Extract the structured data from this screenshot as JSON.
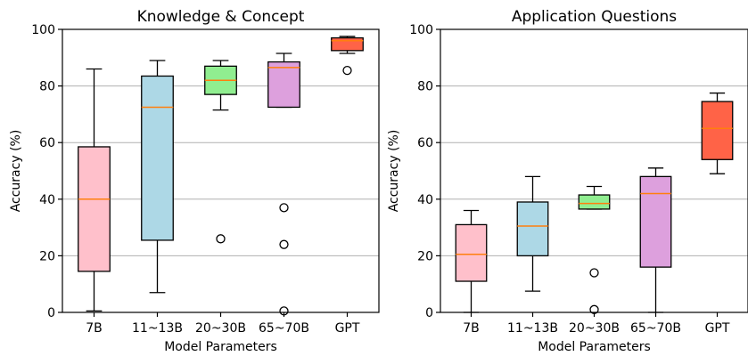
{
  "chart_data": [
    {
      "type": "box",
      "title": "Knowledge & Concept",
      "xlabel": "Model Parameters",
      "ylabel": "Accuracy (%)",
      "ylim": [
        0,
        100
      ],
      "yticks": [
        0,
        20,
        40,
        60,
        80,
        100
      ],
      "grid": "horizontal",
      "categories": [
        "7B",
        "11~13B",
        "20~30B",
        "65~70B",
        "GPT"
      ],
      "boxes": [
        {
          "category": "7B",
          "color": "#ffc0cb",
          "whisker_low": 0.5,
          "q1": 14.5,
          "median": 40,
          "q3": 58.5,
          "whisker_high": 86,
          "outliers": []
        },
        {
          "category": "11~13B",
          "color": "#add8e6",
          "whisker_low": 7,
          "q1": 25.5,
          "median": 72.5,
          "q3": 83.5,
          "whisker_high": 89,
          "outliers": []
        },
        {
          "category": "20~30B",
          "color": "#90ee90",
          "whisker_low": 71.5,
          "q1": 77,
          "median": 82,
          "q3": 87,
          "whisker_high": 89,
          "outliers": [
            26
          ]
        },
        {
          "category": "65~70B",
          "color": "#dda0dd",
          "whisker_low": 72.5,
          "q1": 72.5,
          "median": 86.5,
          "q3": 88.5,
          "whisker_high": 91.5,
          "outliers": [
            37,
            24,
            0.5
          ]
        },
        {
          "category": "GPT",
          "color": "#ff6347",
          "whisker_low": 91.5,
          "q1": 92.5,
          "median": 96,
          "q3": 97,
          "whisker_high": 97.5,
          "outliers": [
            85.5
          ]
        }
      ]
    },
    {
      "type": "box",
      "title": "Application Questions",
      "xlabel": "Model Parameters",
      "ylabel": "Accuracy (%)",
      "ylim": [
        0,
        100
      ],
      "yticks": [
        0,
        20,
        40,
        60,
        80,
        100
      ],
      "grid": "horizontal",
      "categories": [
        "7B",
        "11~13B",
        "20~30B",
        "65~70B",
        "GPT"
      ],
      "boxes": [
        {
          "category": "7B",
          "color": "#ffc0cb",
          "whisker_low": 0,
          "q1": 11,
          "median": 20.5,
          "q3": 31,
          "whisker_high": 36,
          "outliers": []
        },
        {
          "category": "11~13B",
          "color": "#add8e6",
          "whisker_low": 7.5,
          "q1": 20,
          "median": 30.5,
          "q3": 39,
          "whisker_high": 48,
          "outliers": []
        },
        {
          "category": "20~30B",
          "color": "#90ee90",
          "whisker_low": 36.5,
          "q1": 36.5,
          "median": 38.5,
          "q3": 41.5,
          "whisker_high": 44.5,
          "outliers": [
            14,
            1
          ]
        },
        {
          "category": "65~70B",
          "color": "#dda0dd",
          "whisker_low": 0,
          "q1": 16,
          "median": 42,
          "q3": 48,
          "whisker_high": 51,
          "outliers": []
        },
        {
          "category": "GPT",
          "color": "#ff6347",
          "whisker_low": 49,
          "q1": 54,
          "median": 65,
          "q3": 74.5,
          "whisker_high": 77.5,
          "outliers": []
        }
      ]
    }
  ],
  "style": {
    "median_color": "#ff7f0e",
    "grid_color": "#b0b0b0",
    "line_color": "#000000"
  }
}
